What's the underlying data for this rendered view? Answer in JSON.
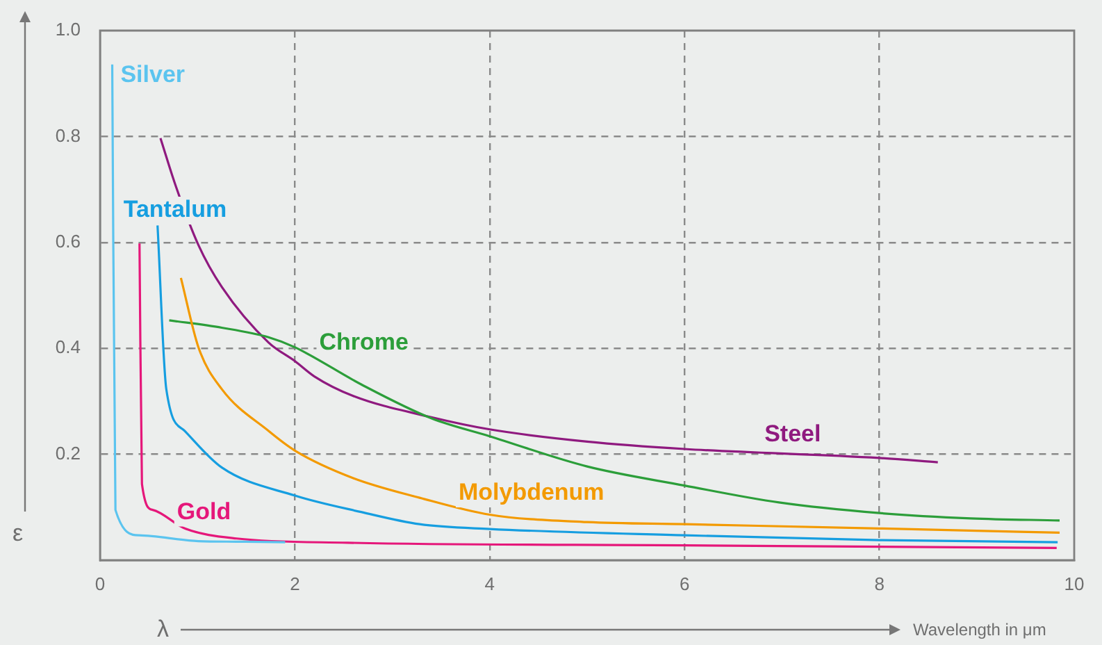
{
  "chart_data": {
    "type": "line",
    "xlabel": "λ",
    "ylabel": "ε",
    "annotations": [
      "Wavelength in μm"
    ],
    "xlim": [
      0,
      10
    ],
    "ylim": [
      0,
      1
    ],
    "xticks": [
      0,
      2,
      4,
      6,
      8,
      10
    ],
    "yticks": [
      {
        "value": 0,
        "label": null
      },
      0.2,
      0.4,
      0.6,
      0.8,
      {
        "value": 1,
        "label": "1.0"
      }
    ],
    "grid": true,
    "marker": "none",
    "series": [
      {
        "name": "Silver",
        "color": "#5bc4ef",
        "x": [
          0.125,
          0.158,
          0.4,
          1.01,
          1.4,
          1.9
        ],
        "values": [
          0.936,
          0.095,
          0.047,
          0.036,
          0.035,
          0.034
        ]
      },
      {
        "name": "Tantalum",
        "color": "#169ee0",
        "x": [
          0.59,
          0.68,
          0.87,
          1.25,
          2,
          2.68,
          3.28,
          4,
          6,
          8,
          9.83
        ],
        "values": [
          0.632,
          0.323,
          0.244,
          0.175,
          0.122,
          0.091,
          0.068,
          0.059,
          0.047,
          0.038,
          0.034
        ]
      },
      {
        "name": "Gold",
        "color": "#e5177a",
        "x": [
          0.405,
          0.43,
          0.54,
          0.87,
          1.4,
          2.54,
          6,
          9.82
        ],
        "values": [
          0.598,
          0.144,
          0.095,
          0.06,
          0.041,
          0.033,
          0.028,
          0.023
        ]
      },
      {
        "name": "Molybdenum",
        "color": "#f39a00",
        "x": [
          0.83,
          1.01,
          1.25,
          1.73,
          2,
          2.6,
          3.28,
          4,
          5,
          6,
          8,
          9.85
        ],
        "values": [
          0.533,
          0.402,
          0.323,
          0.244,
          0.207,
          0.155,
          0.118,
          0.086,
          0.072,
          0.068,
          0.06,
          0.052
        ]
      },
      {
        "name": "Chrome",
        "color": "#2c9e3a",
        "x": [
          0.71,
          1.25,
          1.73,
          2,
          2.68,
          3.4,
          4,
          5,
          6,
          6.97,
          8,
          8.94,
          9.85
        ],
        "values": [
          0.453,
          0.439,
          0.421,
          0.402,
          0.332,
          0.268,
          0.234,
          0.177,
          0.141,
          0.109,
          0.089,
          0.079,
          0.075
        ]
      },
      {
        "name": "Steel",
        "color": "#8f1a7f",
        "x": [
          0.62,
          0.78,
          1.01,
          1.25,
          1.73,
          2,
          2.2,
          2.6,
          3.4,
          4,
          5,
          6,
          8,
          8.6
        ],
        "values": [
          0.797,
          0.705,
          0.595,
          0.516,
          0.411,
          0.376,
          0.347,
          0.31,
          0.27,
          0.247,
          0.224,
          0.21,
          0.193,
          0.185
        ]
      }
    ]
  }
}
